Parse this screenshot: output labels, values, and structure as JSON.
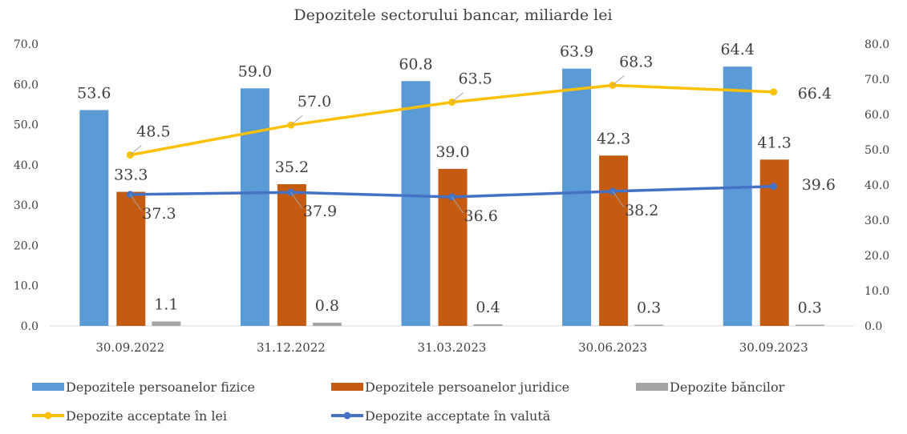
{
  "chart_data": {
    "type": "bar+line",
    "title": "Depozitele sectorului bancar, miliarde lei",
    "categories": [
      "30.09.2022",
      "31.12.2022",
      "31.03.2023",
      "30.06.2023",
      "30.09.2023"
    ],
    "y_left": {
      "range": [
        0,
        70
      ],
      "ticks": [
        "0.0",
        "10.0",
        "20.0",
        "30.0",
        "40.0",
        "50.0",
        "60.0",
        "70.0"
      ]
    },
    "y_right": {
      "range": [
        0,
        80
      ],
      "ticks": [
        "0.0",
        "10.0",
        "20.0",
        "30.0",
        "40.0",
        "50.0",
        "60.0",
        "70.0",
        "80.0"
      ]
    },
    "bars": [
      {
        "name": "Depozitele persoanelor fizice",
        "color": "#5B9BD5",
        "values": [
          53.6,
          59.0,
          60.8,
          63.9,
          64.4
        ],
        "labels": [
          "53.6",
          "59.0",
          "60.8",
          "63.9",
          "64.4"
        ]
      },
      {
        "name": "Depozitele persoanelor juridice",
        "color": "#C55A11",
        "values": [
          33.3,
          35.2,
          39.0,
          42.3,
          41.3
        ],
        "labels": [
          "33.3",
          "35.2",
          "39.0",
          "42.3",
          "41.3"
        ]
      },
      {
        "name": "Depozite băncilor",
        "color": "#A5A5A5",
        "values": [
          1.1,
          0.8,
          0.4,
          0.3,
          0.3
        ],
        "labels": [
          "1.1",
          "0.8",
          "0.4",
          "0.3",
          "0.3"
        ]
      }
    ],
    "lines": [
      {
        "name": "Depozite acceptate în lei",
        "color": "#FFC000",
        "axis": "right",
        "values": [
          48.5,
          57.0,
          63.5,
          68.3,
          66.4
        ],
        "labels": [
          "48.5",
          "57.0",
          "63.5",
          "68.3",
          "66.4"
        ]
      },
      {
        "name": "Depozite acceptate în valută",
        "color": "#4472C4",
        "axis": "right",
        "values": [
          37.3,
          37.9,
          36.6,
          38.2,
          39.6
        ],
        "labels": [
          "37.3",
          "37.9",
          "36.6",
          "38.2",
          "39.6"
        ]
      }
    ],
    "legend": "bottom"
  }
}
